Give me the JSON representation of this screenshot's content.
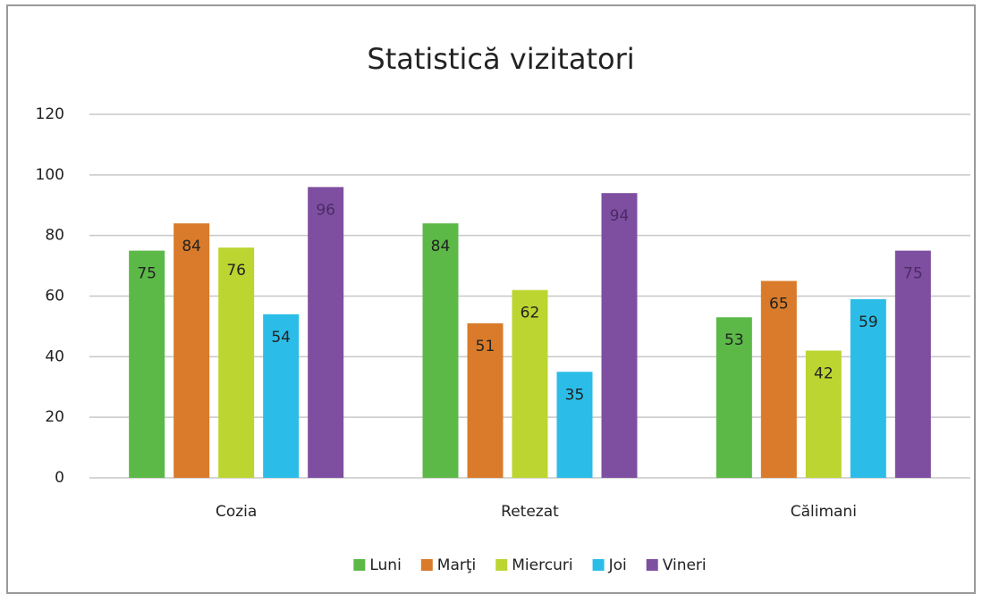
{
  "chart_data": {
    "type": "bar",
    "title": "Statistică vizitatori",
    "categories": [
      "Cozia",
      "Retezat",
      "Călimani"
    ],
    "series": [
      {
        "name": "Luni",
        "color": "#5cb947",
        "values": [
          75,
          84,
          53
        ]
      },
      {
        "name": "Marţi",
        "color": "#d97b2a",
        "values": [
          84,
          51,
          65
        ]
      },
      {
        "name": "Miercuri",
        "color": "#bcd531",
        "values": [
          76,
          62,
          42
        ]
      },
      {
        "name": "Joi",
        "color": "#2bbde8",
        "values": [
          54,
          35,
          59
        ]
      },
      {
        "name": "Vineri",
        "color": "#7e4fa0",
        "values": [
          96,
          94,
          75
        ]
      }
    ],
    "ylim": [
      0,
      120
    ],
    "yticks": [
      0,
      20,
      40,
      60,
      80,
      100,
      120
    ],
    "grid": true,
    "legend": "bottom"
  }
}
